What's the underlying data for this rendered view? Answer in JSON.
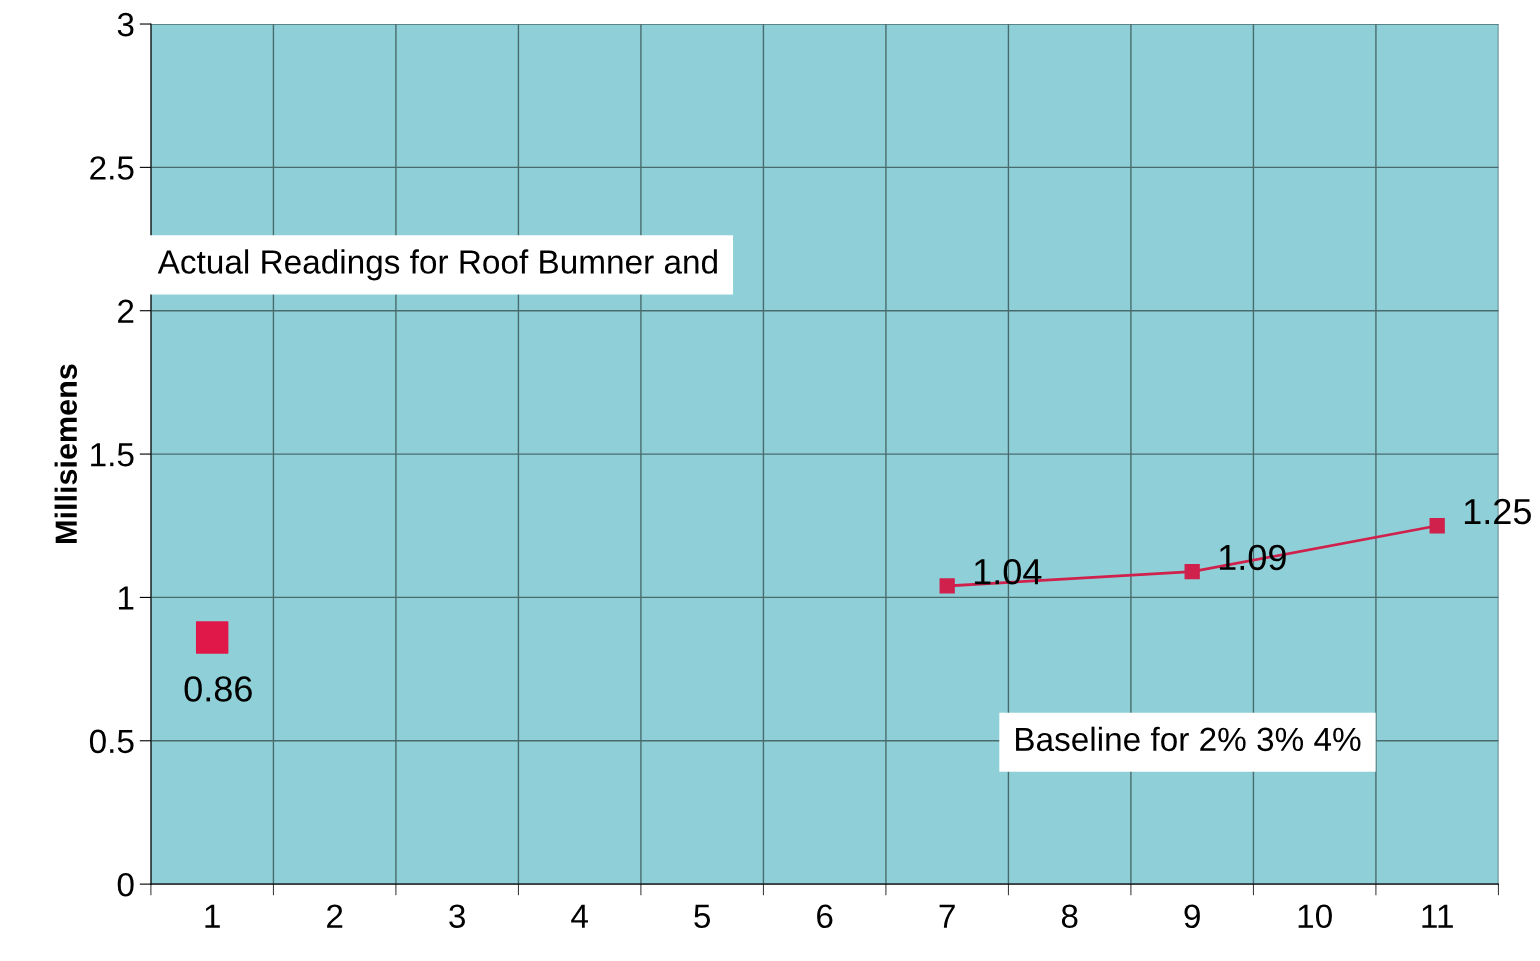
{
  "chart_data": {
    "type": "line",
    "ylabel": "Millisiemens",
    "categories": [
      "1",
      "2",
      "3",
      "4",
      "5",
      "6",
      "7",
      "8",
      "9",
      "10",
      "11"
    ],
    "series": [
      {
        "type": "scatter",
        "color": "#e0184a",
        "values": [
          0.86,
          null,
          null,
          null,
          null,
          null,
          null,
          null,
          null,
          null,
          null
        ]
      },
      {
        "color": "#d0204c",
        "values": [
          null,
          null,
          null,
          null,
          null,
          null,
          1.04,
          null,
          1.09,
          null,
          1.25
        ]
      }
    ],
    "ylim": [
      0,
      3
    ],
    "yticks": [
      0,
      0.5,
      1,
      1.5,
      2,
      2.5,
      3
    ],
    "grid": true,
    "marker": "square",
    "data_labels": true,
    "annotations": [
      "Actual Readings for Roof Bumner and",
      "Baseline for 2% 3% 4%"
    ]
  }
}
